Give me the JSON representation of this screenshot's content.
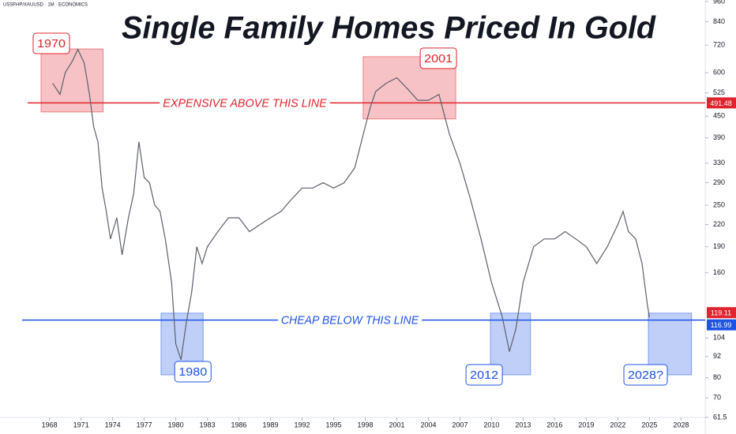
{
  "chart_data": {
    "type": "line",
    "title": "Single Family Homes Priced In Gold",
    "subtitle": "USSFHP/XAUUSD · 1M · ECONOMICS",
    "log_scale": true,
    "color": "#5d606b",
    "x": [
      1968.3,
      1969,
      1969.5,
      1970.2,
      1970.7,
      1971.3,
      1971.8,
      1972.2,
      1972.6,
      1973.0,
      1973.4,
      1973.8,
      1974.4,
      1974.9,
      1975.5,
      1976,
      1976.5,
      1977,
      1977.5,
      1978,
      1978.5,
      1979,
      1979.6,
      1980.0,
      1980.5,
      1981,
      1981.5,
      1982,
      1982.5,
      1983,
      1984,
      1985,
      1986,
      1987,
      1988,
      1989,
      1990,
      1991,
      1992,
      1993,
      1994,
      1995,
      1996,
      1997,
      1998,
      1998.5,
      1999,
      2000,
      2001,
      2002,
      2003,
      2004,
      2005,
      2006,
      2007,
      2008,
      2009,
      2010,
      2011,
      2011.7,
      2012.3,
      2013,
      2014,
      2015,
      2016,
      2017,
      2018,
      2019,
      2020,
      2021,
      2022,
      2022.5,
      2023,
      2023.7,
      2024.3,
      2024.8,
      2025.0
    ],
    "values": [
      560,
      520,
      600,
      650,
      700,
      640,
      520,
      420,
      380,
      280,
      240,
      200,
      230,
      180,
      230,
      270,
      380,
      300,
      290,
      250,
      240,
      200,
      150,
      100,
      90,
      115,
      140,
      190,
      170,
      190,
      210,
      230,
      230,
      210,
      220,
      230,
      240,
      260,
      280,
      280,
      290,
      280,
      290,
      320,
      420,
      480,
      530,
      560,
      580,
      540,
      500,
      500,
      520,
      400,
      330,
      260,
      200,
      150,
      120,
      95,
      110,
      150,
      190,
      200,
      200,
      210,
      200,
      190,
      170,
      190,
      220,
      240,
      210,
      200,
      170,
      130,
      119.11
    ],
    "last_price": 119.11,
    "xlim": [
      1963.3,
      2030.3
    ],
    "xticks": [
      1968,
      1971,
      1974,
      1977,
      1980,
      1983,
      1986,
      1989,
      1992,
      1995,
      1998,
      2001,
      2004,
      2007,
      2010,
      2013,
      2016,
      2019,
      2022,
      2025,
      2028
    ],
    "ylim": [
      61.5,
      960
    ],
    "yticks": [
      61.5,
      70,
      80,
      92,
      104,
      160,
      190,
      220,
      250,
      290,
      330,
      390,
      450,
      525,
      600,
      720,
      840,
      960
    ],
    "hlines": [
      {
        "value": 491.48,
        "label": "EXPENSIVE ABOVE THIS LINE",
        "color": "#e0242f"
      },
      {
        "value": 116.99,
        "label": "CHEAP BELOW THIS LINE",
        "color": "#1e53e5"
      }
    ],
    "boxes": [
      {
        "label": "1970",
        "x_range": [
          1967.2,
          1973.1
        ],
        "y_range": [
          463,
          702
        ],
        "color": "#e0242f",
        "label_pos": "top-left"
      },
      {
        "label": "2001",
        "x_range": [
          1997.8,
          2006.6
        ],
        "y_range": [
          442,
          667
        ],
        "color": "#e0242f",
        "label_pos": "top-right"
      },
      {
        "label": "1980",
        "x_range": [
          1978.6,
          1982.6
        ],
        "y_range": [
          81.5,
          122.5
        ],
        "color": "#1e53e5",
        "label_pos": "bottom-right"
      },
      {
        "label": "2012",
        "x_range": [
          2009.9,
          2013.7
        ],
        "y_range": [
          81.5,
          122.5
        ],
        "color": "#1e53e5",
        "label_pos": "bottom-left"
      },
      {
        "label": "2028?",
        "x_range": [
          2024.9,
          2029.0
        ],
        "y_range": [
          81.5,
          122.5
        ],
        "color": "#1e53e5",
        "label_pos": "bottom-left"
      }
    ]
  }
}
